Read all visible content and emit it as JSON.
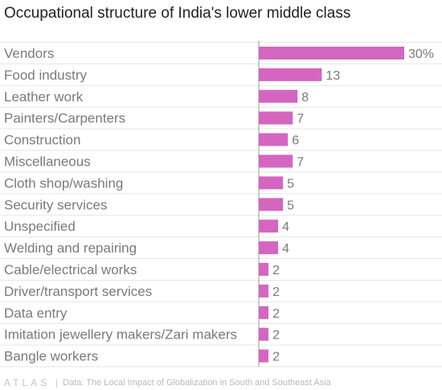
{
  "title": "Occupational structure of India's lower middle class",
  "footer": {
    "brand": "ATLAS",
    "source": "Data: The Local Impact of Globalization in South and Southeast Asia"
  },
  "colors": {
    "bar": "#d466c0",
    "grid": "#e6e6e6",
    "axis": "#999999"
  },
  "chart_data": {
    "type": "bar",
    "orientation": "horizontal",
    "title": "Occupational structure of India's lower middle class",
    "categories": [
      "Vendors",
      "Food industry",
      "Leather work",
      "Painters/Carpenters",
      "Construction",
      "Miscellaneous",
      "Cloth shop/washing",
      "Security services",
      "Unspecified",
      "Welding and repairing",
      "Cable/electrical works",
      "Driver/transport services",
      "Data entry",
      "Imitation jewellery makers/Zari makers",
      "Bangle workers"
    ],
    "values": [
      30,
      13,
      8,
      7,
      6,
      7,
      5,
      5,
      4,
      4,
      2,
      2,
      2,
      2,
      2
    ],
    "value_labels": [
      "30%",
      "13",
      "8",
      "7",
      "6",
      "7",
      "5",
      "5",
      "4",
      "4",
      "2",
      "2",
      "2",
      "2",
      "2"
    ],
    "xlim": [
      0,
      30
    ],
    "grid": true
  }
}
